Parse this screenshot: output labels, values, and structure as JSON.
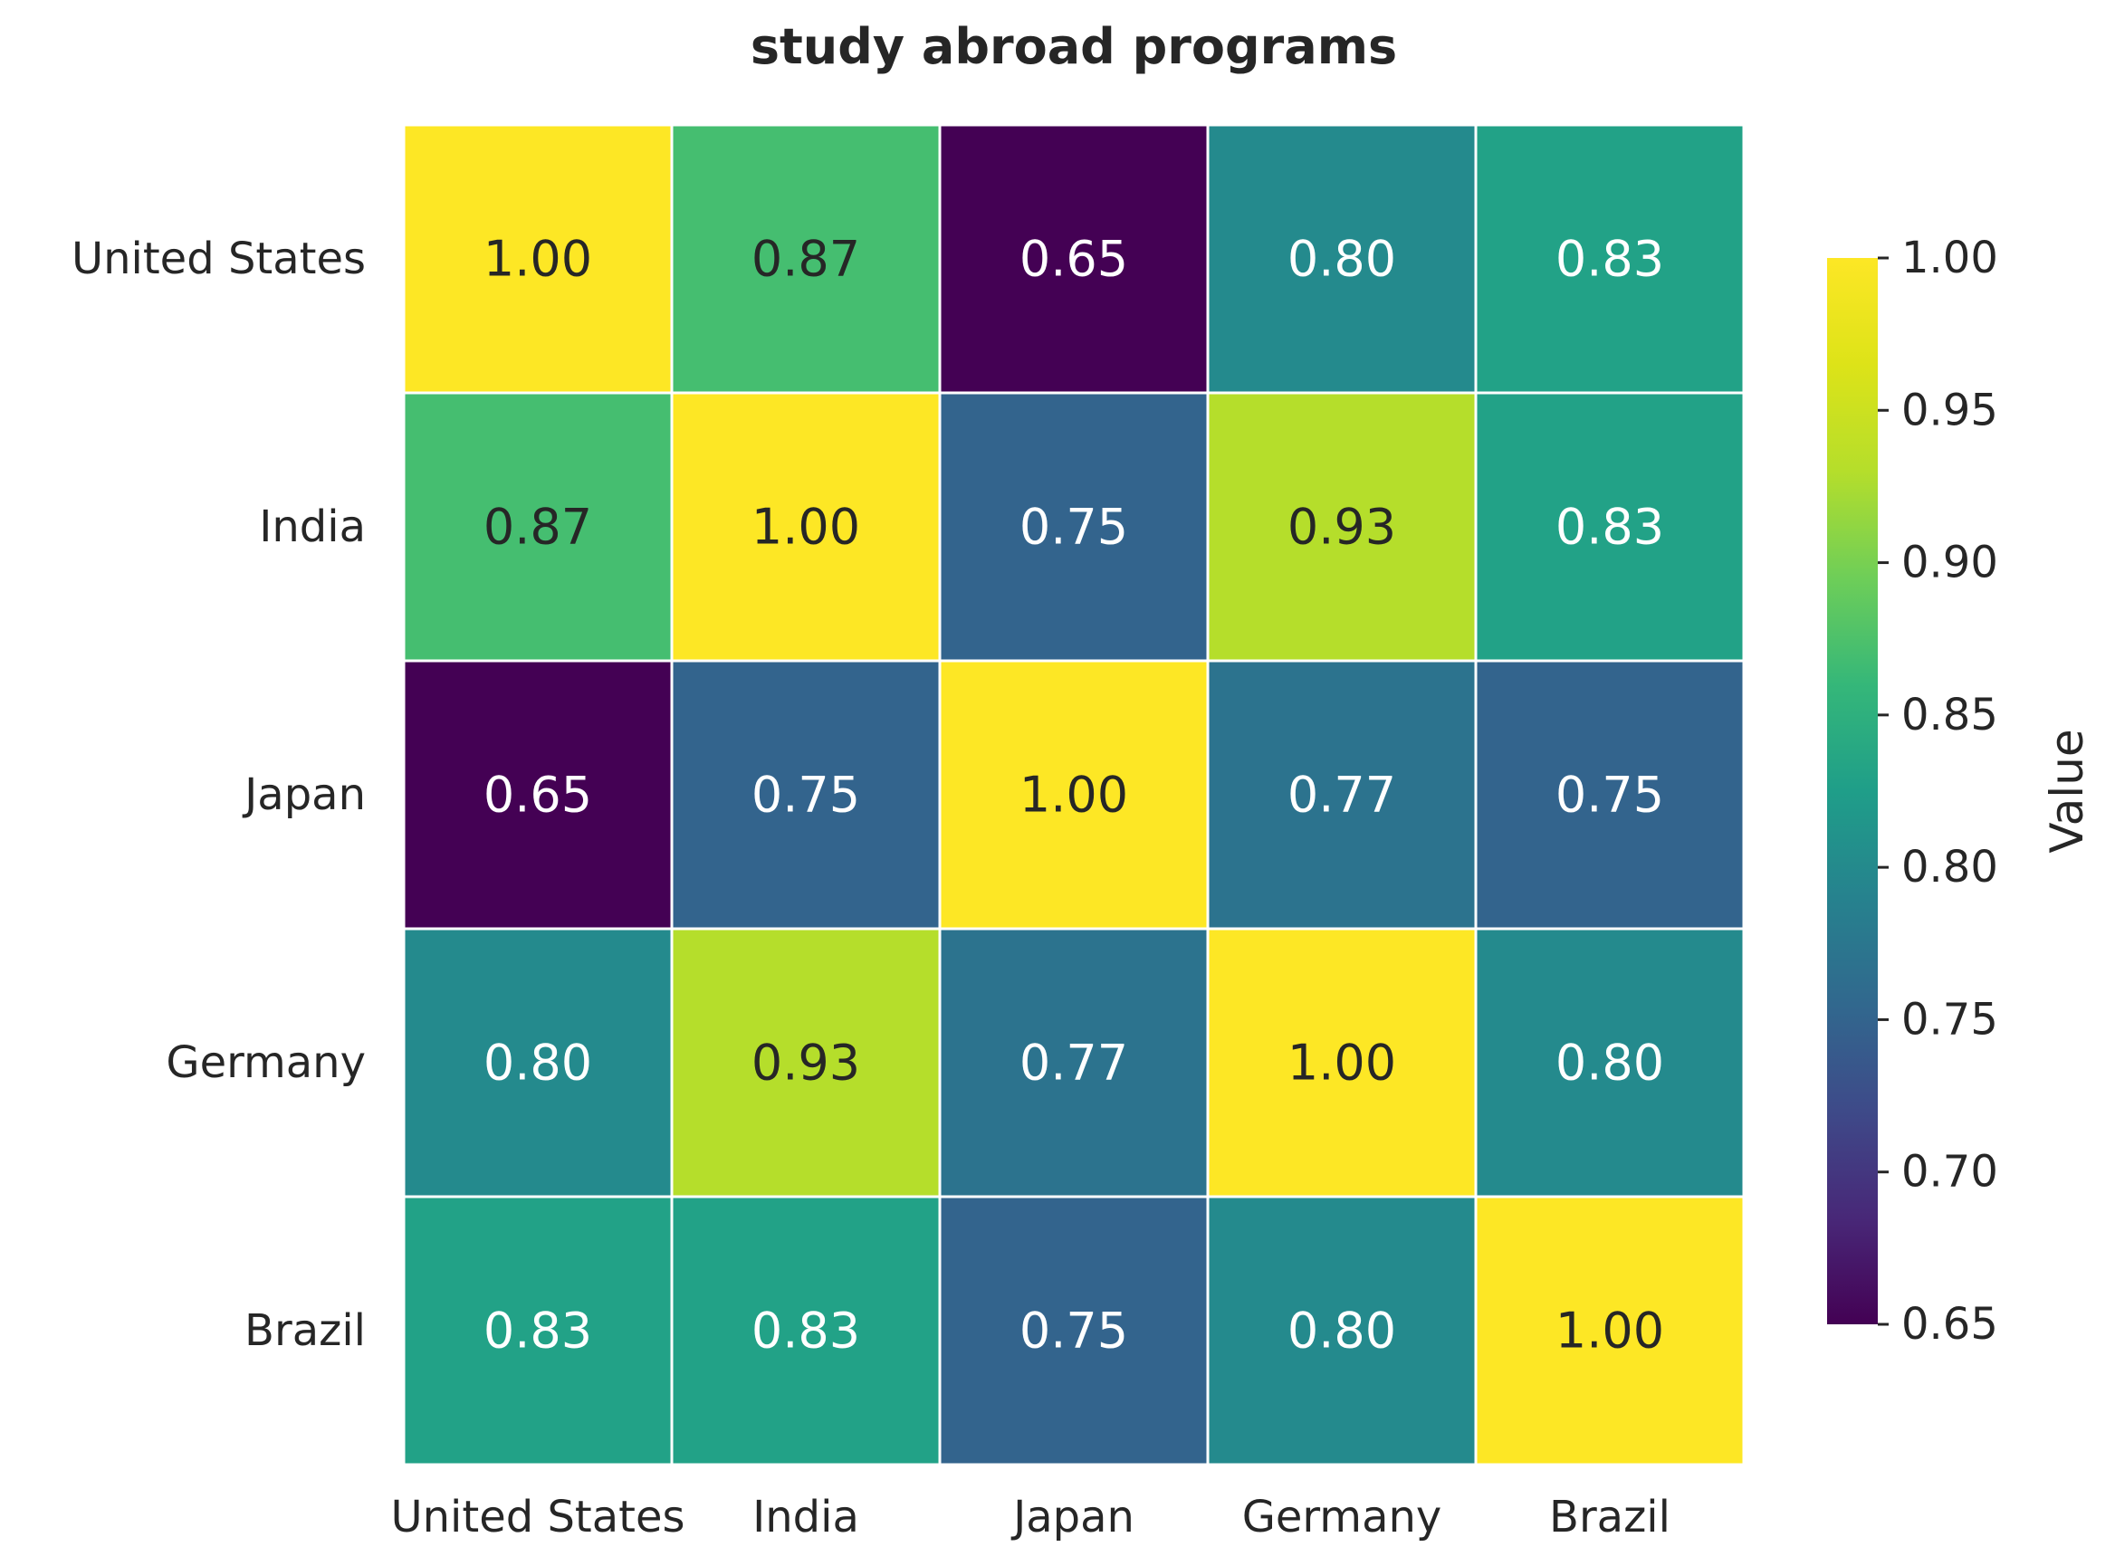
{
  "chart_data": {
    "type": "heatmap",
    "title": "study abroad programs",
    "rows": [
      "United States",
      "India",
      "Japan",
      "Germany",
      "Brazil"
    ],
    "columns": [
      "United States",
      "India",
      "Japan",
      "Germany",
      "Brazil"
    ],
    "values": [
      [
        1.0,
        0.87,
        0.65,
        0.8,
        0.83
      ],
      [
        0.87,
        1.0,
        0.75,
        0.93,
        0.83
      ],
      [
        0.65,
        0.75,
        1.0,
        0.77,
        0.75
      ],
      [
        0.8,
        0.93,
        0.77,
        1.0,
        0.8
      ],
      [
        0.83,
        0.83,
        0.75,
        0.8,
        1.0
      ]
    ],
    "value_format": "0.00",
    "colormap": "viridis",
    "vmin": 0.65,
    "vmax": 1.0,
    "colorbar": {
      "label": "Value",
      "ticks": [
        "0.65",
        "0.70",
        "0.75",
        "0.80",
        "0.85",
        "0.90",
        "0.95",
        "1.00"
      ]
    },
    "grid_line_color": "#ffffff"
  }
}
